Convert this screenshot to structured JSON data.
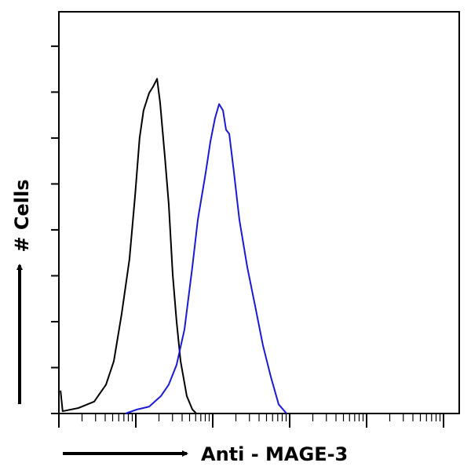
{
  "chart_data": {
    "type": "line",
    "xlabel": "Anti - MAGE-3",
    "ylabel": "# Cells",
    "xscale": "log",
    "xlim": [
      1,
      160000
    ],
    "ylim": [
      0,
      8.75
    ],
    "xticks": [
      1,
      2,
      3,
      4,
      5,
      6,
      7,
      8,
      9,
      10,
      20,
      30,
      40,
      50,
      60,
      70,
      80,
      90,
      100,
      200,
      300,
      400,
      500,
      600,
      700,
      800,
      900,
      1000,
      2000,
      3000,
      4000,
      5000,
      6000,
      7000,
      8000,
      9000,
      10000,
      20000,
      30000,
      40000,
      50000,
      60000,
      70000,
      80000,
      90000,
      100000
    ],
    "yticks": [
      0,
      1,
      2,
      3,
      4,
      5,
      6,
      7,
      8
    ],
    "series": [
      {
        "color": "#000000",
        "x": [
          1.05,
          1.12,
          1.8,
          2.88,
          4.1,
          5.18,
          6.55,
          8.27,
          9.77,
          11.2,
          12.6,
          14.9,
          16.8,
          18.9,
          20.7,
          23.9,
          26.8,
          30.2,
          33.9,
          38.2,
          46.0,
          54.3,
          61.1
        ],
        "values": [
          0.5,
          0.05,
          0.12,
          0.26,
          0.63,
          1.14,
          2.17,
          3.36,
          4.73,
          6.0,
          6.6,
          6.98,
          7.12,
          7.29,
          6.77,
          5.58,
          4.56,
          3.02,
          2.0,
          1.14,
          0.38,
          0.09,
          0
        ]
      },
      {
        "color": "#1a1ad6",
        "x": [
          7.36,
          10.5,
          14.9,
          21.2,
          26.8,
          33.9,
          42.9,
          54.3,
          64.0,
          80.9,
          93.2,
          107,
          121,
          136,
          149,
          164,
          189,
          222,
          281,
          356,
          450,
          569,
          719,
          910
        ],
        "values": [
          0,
          0.09,
          0.15,
          0.38,
          0.63,
          1.06,
          1.83,
          3.19,
          4.22,
          5.24,
          5.92,
          6.43,
          6.74,
          6.6,
          6.18,
          6.09,
          5.24,
          4.22,
          3.19,
          2.34,
          1.48,
          0.8,
          0.2,
          0
        ]
      }
    ]
  }
}
